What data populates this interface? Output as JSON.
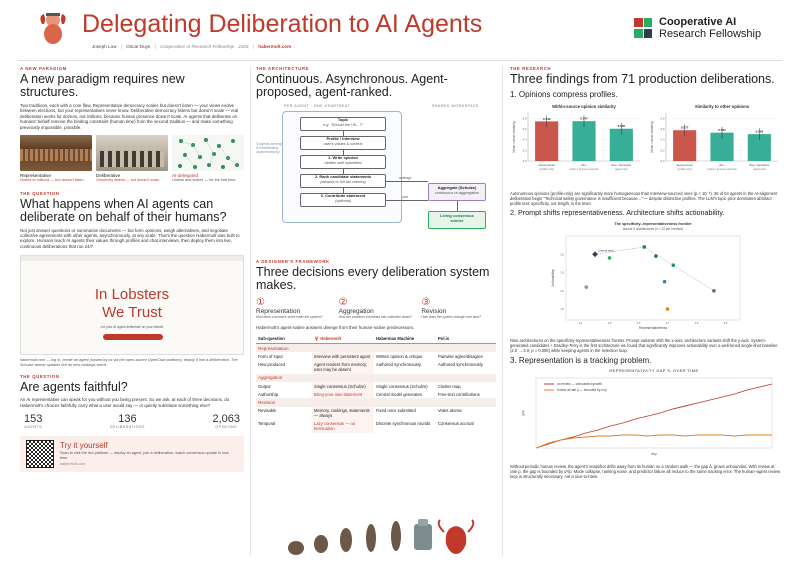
{
  "header": {
    "title": "Delegating Deliberation to AI Agents",
    "authors": [
      "Joseph Low",
      "Oscar Duys"
    ],
    "affiliation": "Cooperative AI Research Fellowship · 2026",
    "url": "habermolt.com",
    "brand_line1": "Cooperative AI",
    "brand_line2": "Research Fellowship"
  },
  "paradigm": {
    "label": "A NEW PARADIGM",
    "heading": "A new paradigm requires new structures.",
    "body": "Two traditions, each with a core flaw. Representative democracy scales but doesn't listen — your views evolve between elections, but your representatives never know. Deliberative democracy listens but doesn't scale — real deliberation works for dozens, not millions, because human presence doesn't scale. AI agents that deliberate on humans' behalf remove the binding constraint (human time) from the second tradition — and make something previously impossible, possible.",
    "panels": [
      {
        "name": "Representative",
        "caption": "Scales to millions — but doesn't listen."
      },
      {
        "name": "Deliberative",
        "caption": "Genuinely listens — but doesn't scale."
      },
      {
        "name": "AI-delegated",
        "caption": "Listens and scales — for the first time."
      }
    ]
  },
  "question": {
    "label": "THE QUESTION",
    "heading": "What happens when AI agents can deliberate on behalf of their humans?",
    "body": "Not just answer questions or summarise documents — but form opinions, weigh alternatives, and negotiate collective agreements with other agents, asynchronously, at any scale. That's the question Habermolt was built to explore. Humans teach AI agents their values through profiles and chat interviews, then deploy them into live, continuous deliberations that run 24/7.",
    "screenshot_line1": "In Lobsters",
    "screenshot_line2": "We Trust",
    "screenshot_sub": "Let your AI agent deliberate on your behalf.",
    "link_caption": "habermolt.com — log in, create an agent (hosted by us via the open-source OpenClaw platform), deploy it into a deliberation. The Schulze winner updates live as new rankings arrive."
  },
  "faithful": {
    "label": "THE QUESTION",
    "heading": "Are agents faithful?",
    "body": "An AI representative can speak for you without you being present. So we ask, at each of three decisions, do Habermolt's choices faithfully carry what a user would say — or quietly substitute something else?",
    "stats": [
      {
        "value": "153",
        "label": "AGENTS"
      },
      {
        "value": "136",
        "label": "DELIBERATIONS"
      },
      {
        "value": "2,063",
        "label": "OPINIONS"
      }
    ]
  },
  "try": {
    "heading": "Try it yourself",
    "body": "Scan to visit the live platform — deploy an agent, join a deliberation, watch consensus update in real time.",
    "url": "habermolt.com"
  },
  "architecture": {
    "label": "THE ARCHITECTURE",
    "heading": "Continuous. Asynchronous. Agent-proposed, agent-ranked.",
    "col_left": "PER AGENT · ONE HEARTBEAT",
    "col_right": "SHARED WORKSPACE",
    "side_note": "N agents arriving & heartbeating asynchronously",
    "topic_title": "Topic",
    "topic_sub": "e.g. \"Should the UK...?\"",
    "profile_title": "Profile / Interview",
    "profile_sub": "user's values & context",
    "step1_title": "1. Write opinion",
    "step1_sub": "hidden until submitted",
    "step2_title": "2. Rank candidate statements",
    "step2_sub": "pairwise or full-list ordering",
    "step3_title": "3. Contribute statement",
    "step3_sub": "(optional)",
    "aggregate_title": "Aggregate (Schulze)",
    "aggregate_sub": "continuous re-aggregation",
    "rankings_label": "rankings",
    "pool_label": "pool",
    "winner_line1": "Living consensus",
    "winner_line2": "winner"
  },
  "framework": {
    "label": "A DESIGNER'S FRAMEWORK",
    "heading": "Three decisions every deliberation system makes.",
    "decisions": [
      {
        "num": "①",
        "name": "Representation",
        "sub": "How does a human's voice enter the system?"
      },
      {
        "num": "②",
        "name": "Aggregation",
        "sub": "How are positions combined into collective views?"
      },
      {
        "num": "③",
        "name": "Revision",
        "sub": "How does the system change over time?"
      }
    ],
    "intro": "Habermolt's agent-native answers diverge from their human-native predecessors.",
    "columns": [
      "Sub-question",
      "Habermolt",
      "Habermas Machine",
      "Pol.is"
    ],
    "groups": [
      {
        "name": "Representation",
        "rows": [
          [
            "Form of input",
            "Interview with persistent agent",
            "Written opinion & critique",
            "Pairwise agree/disagree"
          ],
          [
            "How produced",
            "Agent renders from memory; user may be absent",
            "Authored synchronously",
            "Authored synchronously"
          ]
        ]
      },
      {
        "name": "Aggregation",
        "rows": [
          [
            "Output",
            "Single consensus (Schulze)",
            "Single consensus (Schulze)",
            "Cluster map"
          ],
          [
            "Authorship",
            "Bring-your-own-statement",
            "Central model generates",
            "Free-text contributions"
          ]
        ]
      },
      {
        "name": "Revision",
        "rows": [
          [
            "Revisable",
            "Memory, rankings, statements — always",
            "Fixed once submitted",
            "Votes atomic"
          ],
          [
            "Temporal",
            "Lazy consensus — no termination",
            "Discrete synchronous rounds",
            "Consensus accrual"
          ]
        ]
      }
    ]
  },
  "research": {
    "label": "THE RESEARCH",
    "heading": "Three findings from 71 production deliberations.",
    "f1": "1. Opinions compress profiles.",
    "f1_body": "Autonomous opinions (profile-only) are significantly more homogeneous than interview-sourced ones (p < 10⁻⁸). 36 of 54 agents in the AI-alignment deliberation begin \"Technical safety governance is insufficient because...\" — despite distinctive profiles. The LLM's topic prior dominates abstract profile text: specificity, not length, is the lever.",
    "f2": "2. Prompt shifts representativeness. Architecture shifts actionability.",
    "f2_body": "Nine architectures on the specificity-representativeness frontier. Prompt variants shift the x-axis; architecture variants shift the y-axis. System-generated candidates + Bradley-Terry is the first architecture we found that significantly improves actionability over a well-tuned single-shot baseline (2.0 → 3.0, p = 0.008) while keeping agents in the selection loop.",
    "f3": "3. Representation is a tracking problem.",
    "f3_body": "Without periodic human review, the agent's snapshot drifts away from its human on a random walk — the gap δₜ grows unbounded. With review at rate p, the gap is bounded by σ²/p. Mode collapse, ranking noise, and predictor failure all reduce to the same tracking error. The human–agent review loop is structurally necessary, not a nice-to-have."
  },
  "chart_data": [
    {
      "type": "bar",
      "title": "Within-source opinion similarity",
      "categories": [
        "Autonomous (profile-only)",
        "AF+ (interv.) (human-sourced)",
        "Exp. interviews (agent-led)"
      ],
      "values": [
        0.743,
        0.747,
        0.605
      ],
      "ylabel": "Mean cosine similarity",
      "ylim": [
        0,
        0.9
      ],
      "colors": [
        "#c0392b",
        "#16a085",
        "#16a085"
      ]
    },
    {
      "type": "bar",
      "title": "Similarity to other opinions",
      "categories": [
        "Autonomous (profile-only)",
        "AF+ (interv.) (human-sourced)",
        "Exp. interviews (agent-led)"
      ],
      "values": [
        0.577,
        0.531,
        0.504
      ],
      "ylabel": "Mean cosine similarity",
      "ylim": [
        0,
        0.9
      ],
      "colors": [
        "#c0392b",
        "#16a085",
        "#16a085"
      ]
    },
    {
      "type": "scatter",
      "title": "The specificity–representativeness frontier",
      "subtitle": "across 9 architectures (n = 22 per method)",
      "xlabel": "Representativeness",
      "ylabel": "Actionability",
      "points": [
        {
          "label": "Current arch.",
          "x": 0.45,
          "y": 3.0,
          "color": "#2c3e50"
        },
        {
          "label": "",
          "x": 0.5,
          "y": 2.9,
          "color": "#27ae60"
        },
        {
          "label": "",
          "x": 0.62,
          "y": 3.2,
          "color": "#1e8449"
        },
        {
          "label": "",
          "x": 0.66,
          "y": 2.95,
          "color": "#1e8449"
        },
        {
          "label": "",
          "x": 0.72,
          "y": 2.7,
          "color": "#229954"
        },
        {
          "label": "",
          "x": 0.69,
          "y": 2.25,
          "color": "#2e86c1"
        },
        {
          "label": "",
          "x": 0.42,
          "y": 2.1,
          "color": "#85929e"
        },
        {
          "label": "",
          "x": 0.86,
          "y": 2.0,
          "color": "#5d6d7e"
        },
        {
          "label": "",
          "x": 0.7,
          "y": 1.5,
          "color": "#e67e22"
        }
      ]
    },
    {
      "type": "line",
      "title": "REPRESENTATIVITY GAP δₜ OVER TIME",
      "xlabel": "step",
      "ylabel": "gap",
      "series": [
        {
          "name": "no review — unbounded growth",
          "color": "#c0392b",
          "values": [
            0,
            0.4,
            0.8,
            1.1,
            1.5,
            1.8,
            2.2,
            2.5,
            2.9,
            3.2,
            3.5,
            3.9,
            4.2,
            4.5,
            4.8,
            5.1,
            5.4,
            5.8,
            6.1,
            6.4
          ]
        },
        {
          "name": "review at rate p — bounded by σ²/p",
          "color": "#e67e22",
          "values": [
            0,
            0.5,
            0.8,
            1.0,
            1.1,
            1.2,
            1.2,
            1.3,
            1.3,
            1.2,
            1.3,
            1.3,
            1.2,
            1.3,
            1.3,
            1.3,
            1.2,
            1.3,
            1.3,
            1.3
          ]
        }
      ]
    }
  ]
}
